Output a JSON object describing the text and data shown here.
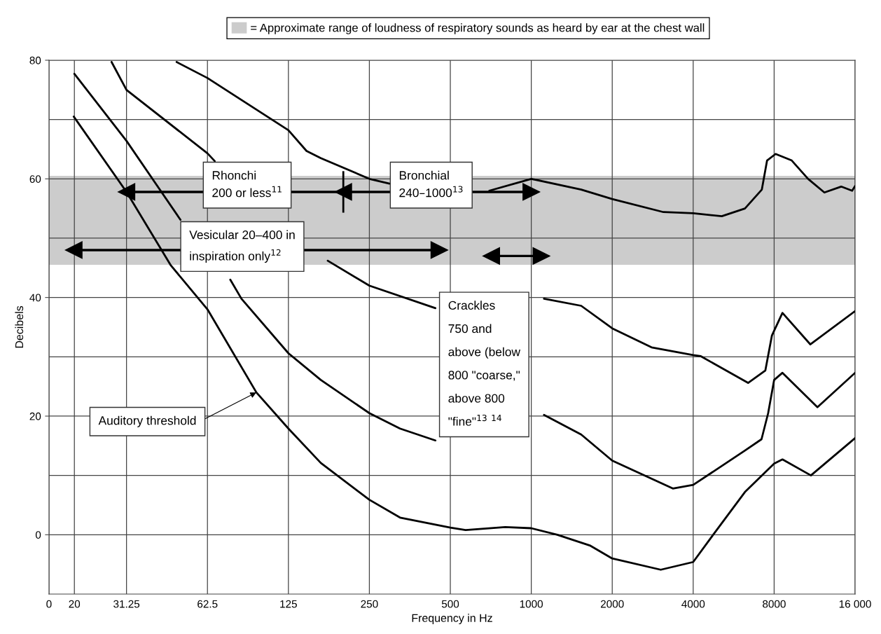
{
  "chart_data": {
    "type": "line",
    "xlabel": "Frequency in Hz",
    "ylabel": "Decibels",
    "log": "x",
    "grid": true,
    "legend": "top",
    "xlim": [
      0,
      16000
    ],
    "xticks": [
      0,
      20,
      31.25,
      62.5,
      125,
      250,
      500,
      1000,
      2000,
      4000,
      8000,
      {
        "value": 16000,
        "label": "16 000"
      }
    ],
    "ylim": [
      -10,
      80
    ],
    "yticks": [
      0,
      20,
      40,
      60,
      80
    ],
    "ref_lines": [
      {
        "axis": "y",
        "value": 10,
        "color": "#444444"
      },
      {
        "axis": "y",
        "value": 30,
        "color": "#444444"
      },
      {
        "axis": "y",
        "value": 50,
        "color": "#444444"
      },
      {
        "axis": "y",
        "value": 70,
        "color": "#444444"
      }
    ],
    "bands": [
      {
        "axis": "y",
        "from": 45.5,
        "to": 60.5,
        "label": "= Approximate range of loudness of respiratory sounds as heard by ear at the chest wall",
        "color": "#cccccc"
      }
    ],
    "series": [
      {
        "color": "#000000",
        "x": [
          19.5,
          31.25,
          45.7,
          62.5,
          95,
          125,
          165,
          250,
          325,
          500,
          570,
          800,
          1000,
          1250,
          1650,
          2000,
          3030,
          4000,
          4730,
          6230,
          8000,
          8590,
          10960,
          16000
        ],
        "values": [
          70.5,
          57.8,
          45.4,
          38,
          24,
          17.9,
          12.1,
          5.9,
          2.9,
          1.2,
          0.8,
          1.3,
          1.1,
          0,
          -1.8,
          -4.0,
          -5.9,
          -4.6,
          -0.1,
          7.2,
          12.0,
          12.7,
          10.0,
          16.3
        ]
      },
      {
        "color": "#000000",
        "x": [
          20,
          31.25,
          49.6,
          62.5,
          76,
          83.6,
          125,
          165,
          250,
          325,
          440,
          600,
          1115,
          1533,
          2000,
          3360,
          4000,
          6230,
          7180,
          7600,
          8000,
          8590,
          11590,
          16000
        ],
        "values": [
          77.7,
          66.4,
          53.1,
          null,
          43.0,
          39.8,
          30.6,
          26.1,
          20.5,
          17.9,
          15.9,
          null,
          20.2,
          16.9,
          12.5,
          7.8,
          8.4,
          14.2,
          16.1,
          20.5,
          26.1,
          27.3,
          21.5,
          27.3
        ]
      },
      {
        "color": "#000000",
        "x": [
          27.5,
          31.25,
          62.5,
          66.5,
          100,
          175,
          250,
          440,
          700,
          1115,
          1533,
          2000,
          2800,
          4000,
          4270,
          6400,
          7420,
          7850,
          8590,
          10900,
          16000
        ],
        "values": [
          79.7,
          75,
          64.3,
          63.0,
          null,
          46.2,
          42.0,
          38.2,
          null,
          39.8,
          38.6,
          34.8,
          31.6,
          30.3,
          30.1,
          25.6,
          27.7,
          33.6,
          37.4,
          32.1,
          37.7
        ]
      },
      {
        "color": "#000000",
        "x": [
          48,
          62.5,
          125,
          146,
          165,
          250,
          297,
          400,
          698,
          1000,
          1533,
          2000,
          3100,
          4000,
          5110,
          6230,
          7200,
          7530,
          8100,
          9300,
          10700,
          12300,
          14200,
          15600,
          16000
        ],
        "values": [
          79.7,
          77.0,
          68.2,
          64.7,
          63.5,
          60.0,
          59.2,
          null,
          58.0,
          60.0,
          58.2,
          56.6,
          54.4,
          54.2,
          53.7,
          55.0,
          58.2,
          63.1,
          64.2,
          63.1,
          60.0,
          57.7,
          58.7,
          58.0,
          58.8
        ]
      },
      {
        "type": "line",
        "marker": "triangle",
        "color": "#000000",
        "x": [
          31.25,
          200
        ],
        "values": [
          57.8,
          57.8
        ],
        "errors": [
          null,
          3.5
        ]
      },
      {
        "type": "line",
        "marker": "triangle",
        "color": "#000000",
        "x": [
          200,
          1000
        ],
        "values": [
          57.8,
          57.8
        ]
      },
      {
        "type": "line",
        "marker": "triangle",
        "color": "#000000",
        "x": [
          19.5,
          455
        ],
        "values": [
          48,
          48
        ]
      },
      {
        "type": "line",
        "marker": "triangle",
        "color": "#000000",
        "x": [
          710,
          1090
        ],
        "values": [
          47,
          47
        ]
      }
    ],
    "annotations": [
      "Rhonchi\n200 or less$^{11}$",
      "Bronchial\n240–1000$^{13}$",
      "Vesicular 20–400 in\ninspiration only$^{12}$",
      "Crackles\n750 and\nabove (below\n800 \"coarse,\"\nabove 800\n\"fine\"$^{13}$ $^{14}$",
      {
        "text": "Auditory threshold",
        "x": 95,
        "y": 24
      }
    ]
  }
}
